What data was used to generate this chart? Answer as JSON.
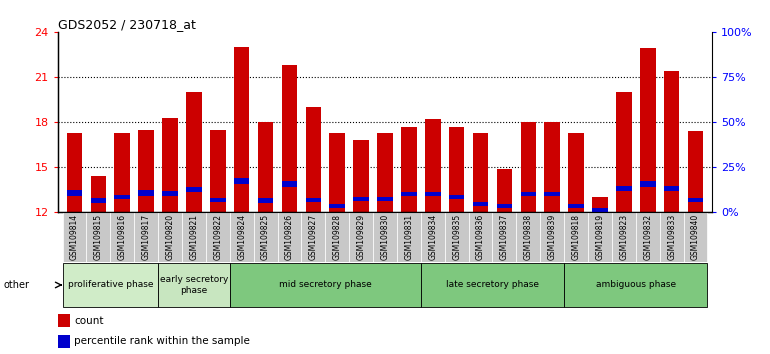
{
  "title": "GDS2052 / 230718_at",
  "samples": [
    "GSM109814",
    "GSM109815",
    "GSM109816",
    "GSM109817",
    "GSM109820",
    "GSM109821",
    "GSM109822",
    "GSM109824",
    "GSM109825",
    "GSM109826",
    "GSM109827",
    "GSM109828",
    "GSM109829",
    "GSM109830",
    "GSM109831",
    "GSM109834",
    "GSM109835",
    "GSM109836",
    "GSM109837",
    "GSM109838",
    "GSM109839",
    "GSM109818",
    "GSM109819",
    "GSM109823",
    "GSM109832",
    "GSM109833",
    "GSM109840"
  ],
  "count_values": [
    17.3,
    14.4,
    17.3,
    17.5,
    18.3,
    20.0,
    17.5,
    23.0,
    18.0,
    21.8,
    19.0,
    17.3,
    16.8,
    17.3,
    17.7,
    18.2,
    17.7,
    17.3,
    14.9,
    18.0,
    18.0,
    17.3,
    13.0,
    20.0,
    22.9,
    21.4,
    17.4
  ],
  "percentile_values": [
    13.1,
    12.6,
    12.9,
    13.1,
    13.1,
    13.35,
    12.7,
    13.9,
    12.65,
    13.7,
    12.7,
    12.3,
    12.75,
    12.75,
    13.1,
    13.1,
    12.9,
    12.4,
    12.3,
    13.1,
    13.1,
    12.3,
    12.0,
    13.4,
    13.7,
    13.4,
    12.7
  ],
  "blue_heights": [
    0.38,
    0.38,
    0.28,
    0.38,
    0.32,
    0.32,
    0.28,
    0.38,
    0.28,
    0.38,
    0.28,
    0.28,
    0.28,
    0.28,
    0.28,
    0.28,
    0.28,
    0.28,
    0.28,
    0.28,
    0.28,
    0.28,
    0.28,
    0.38,
    0.38,
    0.38,
    0.28
  ],
  "phases": [
    {
      "label": "proliferative phase",
      "start": 0,
      "end": 4
    },
    {
      "label": "early secretory\nphase",
      "start": 4,
      "end": 7
    },
    {
      "label": "mid secretory phase",
      "start": 7,
      "end": 15
    },
    {
      "label": "late secretory phase",
      "start": 15,
      "end": 21
    },
    {
      "label": "ambiguous phase",
      "start": 21,
      "end": 27
    }
  ],
  "phase_colors": [
    "#d0ecc8",
    "#c8e6c0",
    "#7ec87e",
    "#7ec87e",
    "#7ec87e"
  ],
  "ymin": 12,
  "ymax": 24,
  "yticks_left": [
    12,
    15,
    18,
    21,
    24
  ],
  "yticks_right_vals": [
    0,
    25,
    50,
    75,
    100
  ],
  "yticks_right_labels": [
    "0%",
    "25%",
    "50%",
    "75%",
    "100%"
  ],
  "bar_color": "#cc0000",
  "blue_color": "#0000cc",
  "tick_bg_color": "#c8c8c8"
}
